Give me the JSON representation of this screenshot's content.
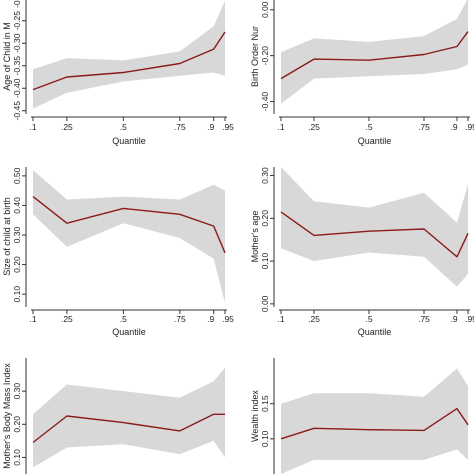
{
  "colors": {
    "line": "#8b1a1a",
    "band": "#d8d8d8",
    "axis": "#333333",
    "background": "#ffffff"
  },
  "chart_data": [
    {
      "type": "line",
      "xlabel": "Quantile",
      "ylabel": "Age of Child in M",
      "x": [
        0.1,
        0.25,
        0.5,
        0.75,
        0.9,
        0.95
      ],
      "xticks": [
        ".1",
        ".25",
        ".5",
        ".75",
        ".9",
        ".95"
      ],
      "yticks": [
        "-0.45",
        "-0.40",
        "-0.35",
        "-0.30",
        "-0.25",
        "-0.20"
      ],
      "ylim": [
        -0.455,
        -0.195
      ],
      "series": [
        {
          "role": "estimate",
          "values": [
            -0.403,
            -0.375,
            -0.365,
            -0.345,
            -0.313,
            -0.275
          ]
        },
        {
          "role": "ci_lower",
          "values": [
            -0.445,
            -0.41,
            -0.385,
            -0.372,
            -0.365,
            -0.372
          ]
        },
        {
          "role": "ci_upper",
          "values": [
            -0.358,
            -0.333,
            -0.338,
            -0.318,
            -0.262,
            -0.205
          ]
        }
      ]
    },
    {
      "type": "line",
      "xlabel": "Quantile",
      "ylabel": "Birth Order Nur",
      "x": [
        0.1,
        0.25,
        0.5,
        0.75,
        0.9,
        0.95
      ],
      "xticks": [
        ".1",
        ".25",
        ".5",
        ".75",
        ".9",
        ".95"
      ],
      "yticks": [
        "-0.40",
        "-0.20",
        "0.00"
      ],
      "ylim": [
        -0.45,
        0.06
      ],
      "series": [
        {
          "role": "estimate",
          "values": [
            -0.3,
            -0.215,
            -0.22,
            -0.195,
            -0.16,
            -0.095
          ]
        },
        {
          "role": "ci_lower",
          "values": [
            -0.41,
            -0.3,
            -0.29,
            -0.28,
            -0.26,
            -0.24
          ]
        },
        {
          "role": "ci_upper",
          "values": [
            -0.185,
            -0.125,
            -0.14,
            -0.115,
            -0.04,
            0.05
          ]
        }
      ]
    },
    {
      "type": "line",
      "xlabel": "Quantile",
      "ylabel": "Size of child at birth",
      "x": [
        0.1,
        0.25,
        0.5,
        0.75,
        0.9,
        0.95
      ],
      "xticks": [
        ".1",
        ".25",
        ".5",
        ".75",
        ".9",
        ".95"
      ],
      "yticks": [
        "0.10",
        "0.20",
        "0.30",
        "0.40",
        "0.50"
      ],
      "ylim": [
        0.06,
        0.53
      ],
      "series": [
        {
          "role": "estimate",
          "values": [
            0.43,
            0.34,
            0.39,
            0.37,
            0.33,
            0.24
          ]
        },
        {
          "role": "ci_lower",
          "values": [
            0.37,
            0.26,
            0.34,
            0.29,
            0.22,
            0.07
          ]
        },
        {
          "role": "ci_upper",
          "values": [
            0.52,
            0.42,
            0.43,
            0.42,
            0.47,
            0.45
          ]
        }
      ]
    },
    {
      "type": "line",
      "xlabel": "Quantile",
      "ylabel": "Mother's age",
      "x": [
        0.1,
        0.25,
        0.5,
        0.75,
        0.9,
        0.95
      ],
      "xticks": [
        ".1",
        ".25",
        ".5",
        ".75",
        ".9",
        ".95"
      ],
      "yticks": [
        "0.00",
        "0.10",
        "0.20",
        "0.30"
      ],
      "ylim": [
        -0.005,
        0.32
      ],
      "series": [
        {
          "role": "estimate",
          "values": [
            0.215,
            0.16,
            0.17,
            0.175,
            0.11,
            0.165
          ]
        },
        {
          "role": "ci_lower",
          "values": [
            0.13,
            0.1,
            0.12,
            0.11,
            0.04,
            0.07
          ]
        },
        {
          "role": "ci_upper",
          "values": [
            0.32,
            0.24,
            0.225,
            0.26,
            0.19,
            0.28
          ]
        }
      ]
    },
    {
      "type": "line",
      "xlabel": "",
      "ylabel": "Mother's Body Mass Index",
      "x": [
        0.1,
        0.25,
        0.5,
        0.75,
        0.9,
        0.95
      ],
      "xticks": [],
      "yticks": [
        "0.10",
        "0.20",
        "0.30"
      ],
      "ylim": [
        0.05,
        0.4
      ],
      "series": [
        {
          "role": "estimate",
          "values": [
            0.145,
            0.225,
            0.205,
            0.18,
            0.23,
            0.23
          ]
        },
        {
          "role": "ci_lower",
          "values": [
            0.07,
            0.13,
            0.14,
            0.11,
            0.15,
            0.1
          ]
        },
        {
          "role": "ci_upper",
          "values": [
            0.23,
            0.32,
            0.3,
            0.28,
            0.33,
            0.37
          ]
        }
      ]
    },
    {
      "type": "line",
      "xlabel": "",
      "ylabel": "Wealth index",
      "x": [
        0.1,
        0.25,
        0.5,
        0.75,
        0.9,
        0.95
      ],
      "xticks": [],
      "yticks": [
        "0.10",
        "0.15"
      ],
      "ylim": [
        0.05,
        0.215
      ],
      "series": [
        {
          "role": "estimate",
          "values": [
            0.1,
            0.115,
            0.113,
            0.112,
            0.143,
            0.12
          ]
        },
        {
          "role": "ci_lower",
          "values": [
            0.05,
            0.07,
            0.07,
            0.07,
            0.085,
            0.07
          ]
        },
        {
          "role": "ci_upper",
          "values": [
            0.15,
            0.165,
            0.165,
            0.16,
            0.2,
            0.175
          ]
        }
      ]
    }
  ]
}
